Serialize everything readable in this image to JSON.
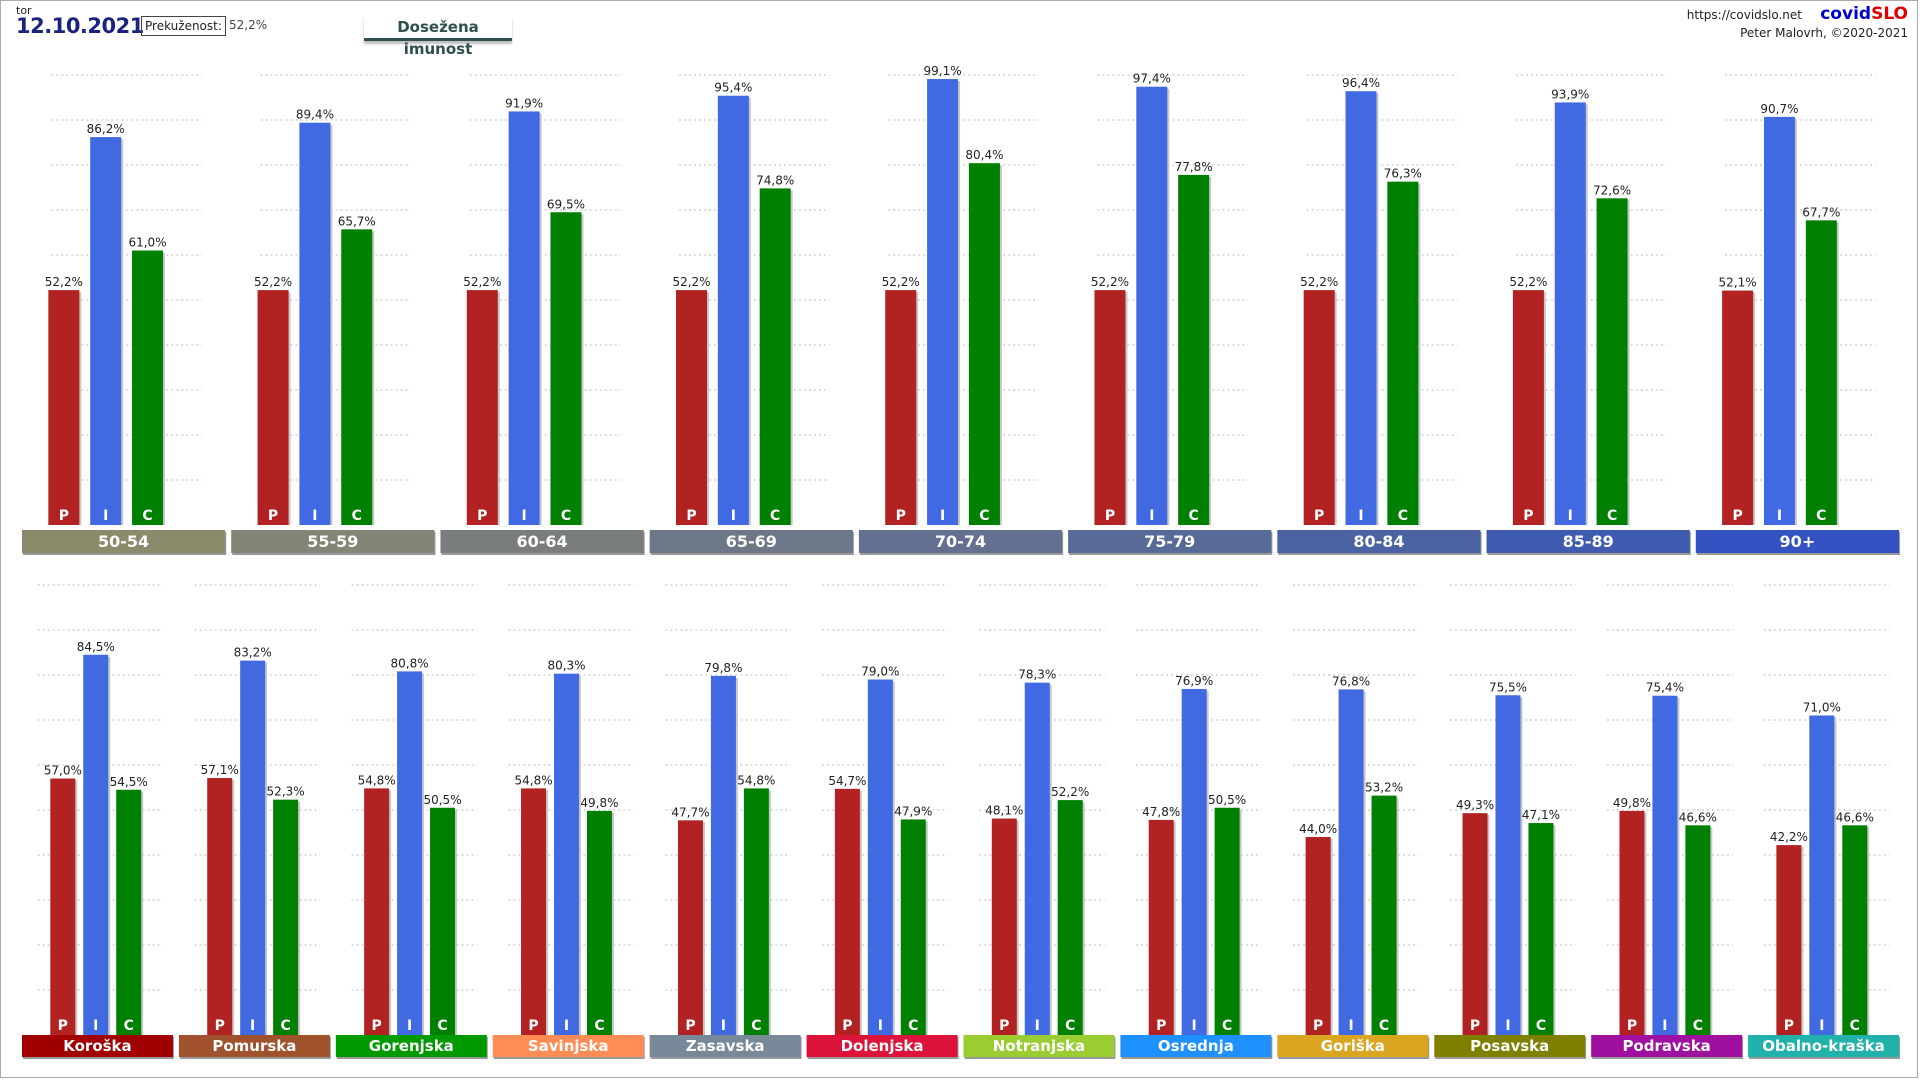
{
  "header": {
    "day": "tor",
    "date": "12.10.2021",
    "breakthrough_label": "Prekuženost:",
    "breakthrough_value": "52,2%",
    "tab_label": "Dosežena imunost",
    "url": "https://covidslo.net",
    "brand_part1": "covid",
    "brand_part2": "SLO",
    "author": "Peter Malovrh, ©2020-2021"
  },
  "chart_data": [
    {
      "type": "bar",
      "title": "",
      "ylim": [
        0,
        100
      ],
      "bar_letters": [
        "P",
        "I",
        "C"
      ],
      "series_colors": [
        "#b22222",
        "#4169e1",
        "#008000"
      ],
      "groups": [
        {
          "label": "50-54",
          "color": "#8b8b6b",
          "values": [
            52.2,
            86.2,
            61.0
          ]
        },
        {
          "label": "55-59",
          "color": "#858577",
          "values": [
            52.2,
            89.4,
            65.7
          ]
        },
        {
          "label": "60-64",
          "color": "#7a7d7e",
          "values": [
            52.2,
            91.9,
            69.5
          ]
        },
        {
          "label": "65-69",
          "color": "#6e7788",
          "values": [
            52.2,
            95.4,
            74.8
          ]
        },
        {
          "label": "70-74",
          "color": "#63708f",
          "values": [
            52.2,
            99.1,
            80.4
          ]
        },
        {
          "label": "75-79",
          "color": "#576a98",
          "values": [
            52.2,
            97.4,
            77.8
          ]
        },
        {
          "label": "80-84",
          "color": "#4b62a3",
          "values": [
            52.2,
            96.4,
            76.3
          ]
        },
        {
          "label": "85-89",
          "color": "#3f5bb0",
          "values": [
            52.2,
            93.9,
            72.6
          ]
        },
        {
          "label": "90+",
          "color": "#3452c2",
          "values": [
            52.1,
            90.7,
            67.7
          ]
        }
      ],
      "value_labels": [
        [
          "52,2%",
          "86,2%",
          "61,0%"
        ],
        [
          "52,2%",
          "89,4%",
          "65,7%"
        ],
        [
          "52,2%",
          "91,9%",
          "69,5%"
        ],
        [
          "52,2%",
          "95,4%",
          "74,8%"
        ],
        [
          "52,2%",
          "99,1%",
          "80,4%"
        ],
        [
          "52,2%",
          "97,4%",
          "77,8%"
        ],
        [
          "52,2%",
          "96,4%",
          "76,3%"
        ],
        [
          "52,2%",
          "93,9%",
          "72,6%"
        ],
        [
          "52,1%",
          "90,7%",
          "67,7%"
        ]
      ]
    },
    {
      "type": "bar",
      "title": "",
      "ylim": [
        0,
        100
      ],
      "bar_letters": [
        "P",
        "I",
        "C"
      ],
      "series_colors": [
        "#b22222",
        "#4169e1",
        "#008000"
      ],
      "groups": [
        {
          "label": "Koroška",
          "color": "#a00000",
          "values": [
            57.0,
            84.5,
            54.5
          ]
        },
        {
          "label": "Pomurska",
          "color": "#a0522d",
          "values": [
            57.1,
            83.2,
            52.3
          ]
        },
        {
          "label": "Gorenjska",
          "color": "#009900",
          "values": [
            54.8,
            80.8,
            50.5
          ]
        },
        {
          "label": "Savinjska",
          "color": "#ff8c55",
          "values": [
            54.8,
            80.3,
            49.8
          ]
        },
        {
          "label": "Zasavska",
          "color": "#778899",
          "values": [
            47.7,
            79.8,
            54.8
          ]
        },
        {
          "label": "Dolenjska",
          "color": "#dc143c",
          "values": [
            54.7,
            79.0,
            47.9
          ]
        },
        {
          "label": "Notranjska",
          "color": "#9acd32",
          "values": [
            48.1,
            78.3,
            52.2
          ]
        },
        {
          "label": "Osrednja",
          "color": "#1e90ff",
          "values": [
            47.8,
            76.9,
            50.5
          ]
        },
        {
          "label": "Goriška",
          "color": "#daa520",
          "values": [
            44.0,
            76.8,
            53.2
          ]
        },
        {
          "label": "Posavska",
          "color": "#808000",
          "values": [
            49.3,
            75.5,
            47.1
          ]
        },
        {
          "label": "Podravska",
          "color": "#a010a0",
          "values": [
            49.8,
            75.4,
            46.6
          ]
        },
        {
          "label": "Obalno-kraška",
          "color": "#20b2aa",
          "values": [
            42.2,
            71.0,
            46.6
          ]
        }
      ],
      "value_labels": [
        [
          "57,0%",
          "84,5%",
          "54,5%"
        ],
        [
          "57,1%",
          "83,2%",
          "52,3%"
        ],
        [
          "54,8%",
          "80,8%",
          "50,5%"
        ],
        [
          "54,8%",
          "80,3%",
          "49,8%"
        ],
        [
          "47,7%",
          "79,8%",
          "54,8%"
        ],
        [
          "54,7%",
          "79,0%",
          "47,9%"
        ],
        [
          "48,1%",
          "78,3%",
          "52,2%"
        ],
        [
          "47,8%",
          "76,9%",
          "50,5%"
        ],
        [
          "44,0%",
          "76,8%",
          "53,2%"
        ],
        [
          "49,3%",
          "75,5%",
          "47,1%"
        ],
        [
          "49,8%",
          "75,4%",
          "46,6%"
        ],
        [
          "42,2%",
          "71,0%",
          "46,6%"
        ]
      ]
    }
  ]
}
